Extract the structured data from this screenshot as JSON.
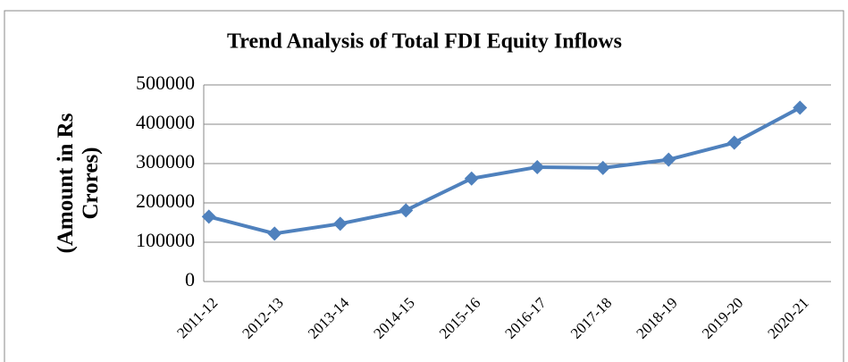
{
  "chart_data": {
    "type": "line",
    "title": "Trend Analysis of Total FDI Equity Inflows",
    "ylabel": "(Amount in Rs Crores)",
    "categories": [
      "2011-12",
      "2012-13",
      "2013-14",
      "2014-15",
      "2015-16",
      "2016-17",
      "2017-18",
      "2018-19",
      "2019-20",
      "2020-21"
    ],
    "values": [
      165000,
      122000,
      147000,
      181000,
      262000,
      291000,
      289000,
      310000,
      353000,
      442000
    ],
    "color": "#4f81bd",
    "ylim": [
      0,
      500000
    ],
    "yticks": [
      0,
      100000,
      200000,
      300000,
      400000,
      500000
    ],
    "grid": true
  }
}
